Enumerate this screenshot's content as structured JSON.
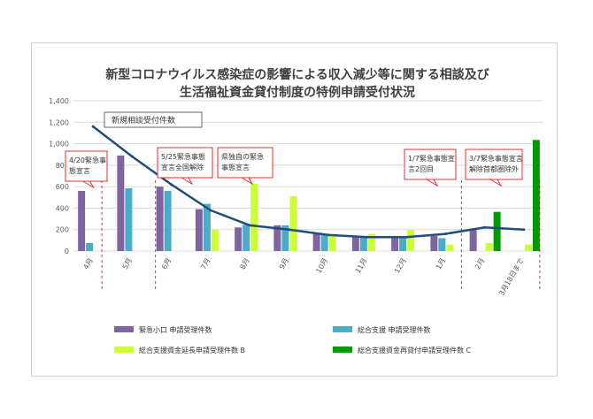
{
  "chart_data": {
    "type": "bar",
    "title_lines": [
      "新型コロナウイルス感染症の影響による収入減少等に関する相談及び",
      "生活福祉資金貸付制度の特例申請受付状況"
    ],
    "categories": [
      "4月",
      "5月",
      "6月",
      "7月",
      "8月",
      "9月",
      "10月",
      "11月",
      "12月",
      "1月",
      "2月",
      "3月18日まで"
    ],
    "ylim": [
      0,
      1400
    ],
    "yticks": [
      0,
      200,
      400,
      600,
      800,
      1000,
      1200,
      1400
    ],
    "ytick_labels": [
      "0",
      "200",
      "400",
      "600",
      "800",
      "1,000",
      "1,200",
      "1,400"
    ],
    "grid": true,
    "series": [
      {
        "name": "緊急小口 申請受理件数",
        "kind": "bar",
        "color": "#8064a2",
        "values": [
          560,
          890,
          600,
          390,
          220,
          240,
          165,
          130,
          130,
          140,
          200,
          null
        ]
      },
      {
        "name": "総合支援 申請受理件数",
        "kind": "bar",
        "color": "#4bacc6",
        "values": [
          75,
          585,
          560,
          440,
          245,
          240,
          155,
          125,
          125,
          120,
          null,
          null
        ]
      },
      {
        "name": "総合支援資金延長申請受理件数 B",
        "kind": "bar",
        "color": "#ccff33",
        "values": [
          null,
          null,
          null,
          195,
          625,
          510,
          145,
          160,
          195,
          60,
          75,
          60
        ]
      },
      {
        "name": "総合支援資金再貸付申請受理件数 C",
        "kind": "bar",
        "color": "#009900",
        "values": [
          null,
          null,
          null,
          null,
          null,
          null,
          null,
          null,
          null,
          null,
          365,
          1035
        ]
      },
      {
        "name": "新規相談受付件数",
        "kind": "line",
        "color": "#1f4e79",
        "values": [
          1160,
          880,
          620,
          380,
          240,
          200,
          150,
          130,
          130,
          160,
          220,
          200
        ]
      }
    ],
    "callouts": [
      {
        "lines": [
          "4/20緊急事",
          "態宣言"
        ],
        "category_index": 0
      },
      {
        "lines": [
          "5/25緊急事態",
          "宣言全国解除"
        ],
        "category_index": 2
      },
      {
        "lines": [
          "県独自の緊急",
          "事態宣言"
        ],
        "category_index": 4
      },
      {
        "lines": [
          "1/7緊急事態宣",
          "言2回目"
        ],
        "category_index": 9
      },
      {
        "lines": [
          "3/7緊急事態宣言",
          "解除首都圏除外"
        ],
        "category_index": 11
      }
    ],
    "legend": "bottom"
  }
}
